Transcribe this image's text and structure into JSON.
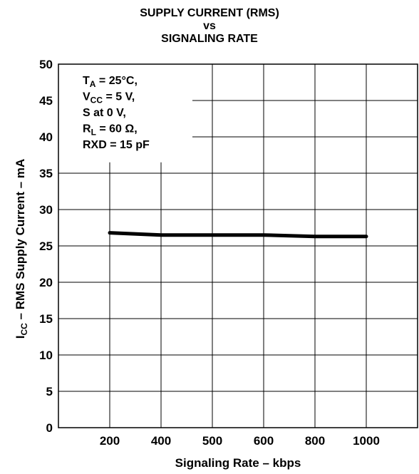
{
  "chart_data": {
    "type": "line",
    "title": [
      "SUPPLY CURRENT (RMS)",
      "vs",
      "SIGNALING RATE"
    ],
    "xlabel": "Signaling Rate  – kbps",
    "ylabel": {
      "prefix": "I",
      "sub": "CC",
      "rest": " – RMS Supply Current – mA"
    },
    "categories": [
      "200",
      "400",
      "500",
      "600",
      "800",
      "1000"
    ],
    "yticks": [
      0,
      5,
      10,
      15,
      20,
      25,
      30,
      35,
      40,
      45,
      50
    ],
    "ylim": [
      0,
      50
    ],
    "grid": true,
    "series": [
      {
        "values": [
          26.8,
          26.5,
          26.5,
          26.5,
          26.3,
          26.3
        ]
      }
    ],
    "conditions": [
      {
        "main": "T",
        "sub": "A",
        "rest": " = 25°C,"
      },
      {
        "main": "V",
        "sub": "CC",
        "rest": " = 5 V,"
      },
      {
        "main": "S at 0 V,",
        "sub": "",
        "rest": ""
      },
      {
        "main": "R",
        "sub": "L",
        "rest": " = 60 Ω,"
      },
      {
        "main": "RXD = 15 pF",
        "sub": "",
        "rest": ""
      }
    ]
  }
}
